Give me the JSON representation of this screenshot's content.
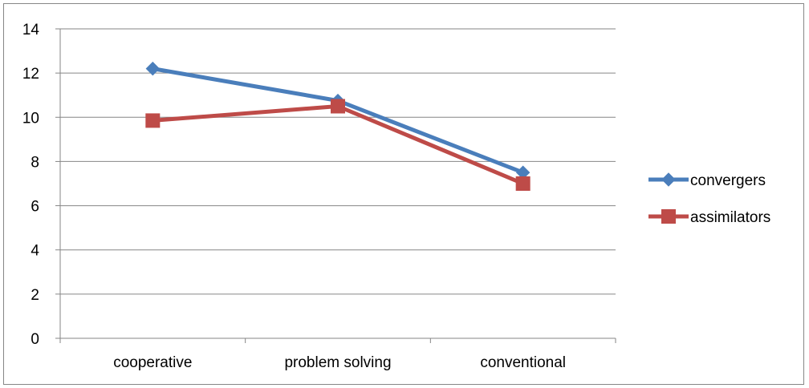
{
  "chart_data": {
    "type": "line",
    "categories": [
      "cooperative",
      "problem solving",
      "conventional"
    ],
    "series": [
      {
        "name": "convergers",
        "values": [
          12.2,
          10.75,
          7.5
        ],
        "color": "#4A7EBB",
        "marker": "diamond"
      },
      {
        "name": "assimilators",
        "values": [
          9.85,
          10.5,
          7.0
        ],
        "color": "#BE4B48",
        "marker": "square"
      }
    ],
    "ylim": [
      0,
      14
    ],
    "yticks": [
      0,
      2,
      4,
      6,
      8,
      10,
      12,
      14
    ],
    "grid": true,
    "legend_position": "right"
  }
}
